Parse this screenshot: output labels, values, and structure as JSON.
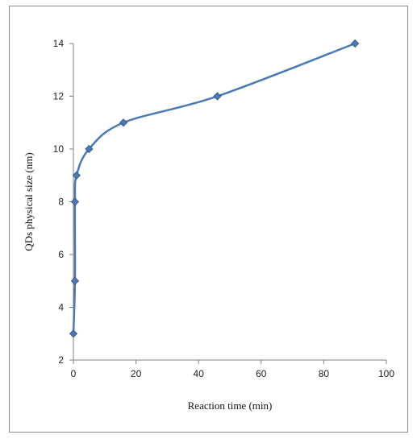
{
  "chart_data": {
    "type": "scatter",
    "xlabel": "Reaction time (min)",
    "ylabel": "QDs  physical  size (nm)",
    "xlim": [
      0,
      100
    ],
    "ylim": [
      2,
      14
    ],
    "xticks": [
      0,
      20,
      40,
      60,
      80,
      100
    ],
    "yticks": [
      2,
      4,
      6,
      8,
      10,
      12,
      14
    ],
    "grid": false,
    "legend": "none",
    "smooth_line": true,
    "line_color": "#4a7ab5",
    "marker_color": "#4a7ab5",
    "marker_edge": "#2a4f80",
    "marker": "diamond",
    "series": [
      {
        "x": [
          0,
          0.5,
          0.5,
          1,
          5,
          16,
          46,
          90
        ],
        "y": [
          3,
          5,
          8,
          9,
          10,
          11,
          12,
          14
        ]
      }
    ]
  }
}
